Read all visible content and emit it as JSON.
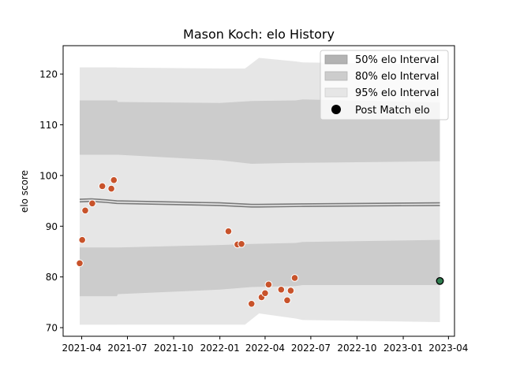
{
  "chart_data": {
    "type": "scatter",
    "title": "Mason Koch: elo History",
    "xlabel": "",
    "ylabel": "elo score",
    "xlim": [
      "2021-02-23",
      "2023-04-13"
    ],
    "ylim": [
      68.3,
      125.6
    ],
    "x_ticks": [
      "2021-04",
      "2021-07",
      "2021-10",
      "2022-01",
      "2022-04",
      "2022-07",
      "2022-10",
      "2023-01",
      "2023-04"
    ],
    "y_ticks": [
      70,
      80,
      90,
      100,
      110,
      120
    ],
    "grid": false,
    "legend_position": "top-right",
    "legend": [
      {
        "label": "50% elo Interval",
        "kind": "band",
        "color": "#b3b3b3"
      },
      {
        "label": "80% elo Interval",
        "kind": "band",
        "color": "#cccccc"
      },
      {
        "label": "95% elo Interval",
        "kind": "band",
        "color": "#e6e6e6"
      },
      {
        "label": "Post Match elo",
        "kind": "marker",
        "color": "#000000"
      }
    ],
    "colors": {
      "match_point": "#c8532b",
      "final_point": "#2f7d4f",
      "center_line": "#7a7a7a",
      "band_50": "#b3b3b3",
      "band_80": "#cccccc",
      "band_95": "#e6e6e6"
    },
    "rating_center": {
      "x": [
        "2021-03-28",
        "2021-04-20",
        "2021-05-20",
        "2021-06-10",
        "2022-01-01",
        "2022-03-05",
        "2022-03-20",
        "2022-06-15",
        "2023-03-15"
      ],
      "y": [
        95.0,
        95.1,
        94.9,
        94.7,
        94.3,
        94.0,
        94.0,
        94.1,
        94.3
      ]
    },
    "bands": [
      {
        "level": "95%",
        "x": [
          "2021-03-28",
          "2021-06-10",
          "2021-06-12",
          "2022-01-01",
          "2022-02-20",
          "2022-03-20",
          "2022-06-01",
          "2022-06-15",
          "2023-03-15"
        ],
        "lower": [
          70.6,
          70.6,
          70.6,
          70.6,
          70.6,
          72.8,
          71.8,
          71.5,
          71.1
        ],
        "upper": [
          121.3,
          121.3,
          121.3,
          121.1,
          121.1,
          123.2,
          122.5,
          122.3,
          121.9
        ]
      },
      {
        "level": "80% / 50% (upper)",
        "x": [
          "2021-03-28",
          "2021-06-10",
          "2021-06-12",
          "2022-01-01",
          "2022-03-05",
          "2022-06-01",
          "2022-06-15",
          "2023-03-15"
        ],
        "lower": [
          104.1,
          104.1,
          104.1,
          103.0,
          102.3,
          102.5,
          102.5,
          102.8
        ],
        "upper": [
          114.8,
          114.8,
          114.5,
          114.3,
          114.7,
          114.8,
          115.0,
          114.4
        ]
      },
      {
        "level": "80% / 50% (lower)",
        "x": [
          "2021-03-28",
          "2021-06-10",
          "2021-06-12",
          "2022-01-01",
          "2022-03-05",
          "2022-06-01",
          "2022-06-15",
          "2023-03-15"
        ],
        "lower": [
          76.2,
          76.2,
          76.6,
          77.5,
          78.0,
          78.2,
          78.4,
          78.4
        ],
        "upper": [
          85.8,
          85.8,
          85.8,
          86.3,
          86.5,
          86.7,
          86.9,
          87.3
        ]
      }
    ],
    "series": [
      {
        "name": "Post Match elo",
        "x": [
          "2021-03-28",
          "2021-04-02",
          "2021-04-08",
          "2021-04-22",
          "2021-05-12",
          "2021-05-30",
          "2021-06-04",
          "2022-01-18",
          "2022-02-05",
          "2022-02-13",
          "2022-03-05",
          "2022-03-25",
          "2022-04-01",
          "2022-04-08",
          "2022-05-03",
          "2022-05-15",
          "2022-05-22",
          "2022-05-30"
        ],
        "y": [
          82.7,
          87.3,
          93.1,
          94.5,
          97.9,
          97.4,
          99.1,
          89.0,
          86.4,
          86.5,
          74.7,
          76.0,
          76.8,
          78.5,
          77.5,
          75.4,
          77.3,
          79.8
        ]
      },
      {
        "name": "Post Match elo",
        "x": [
          "2023-03-15"
        ],
        "y": [
          79.2
        ]
      }
    ]
  }
}
